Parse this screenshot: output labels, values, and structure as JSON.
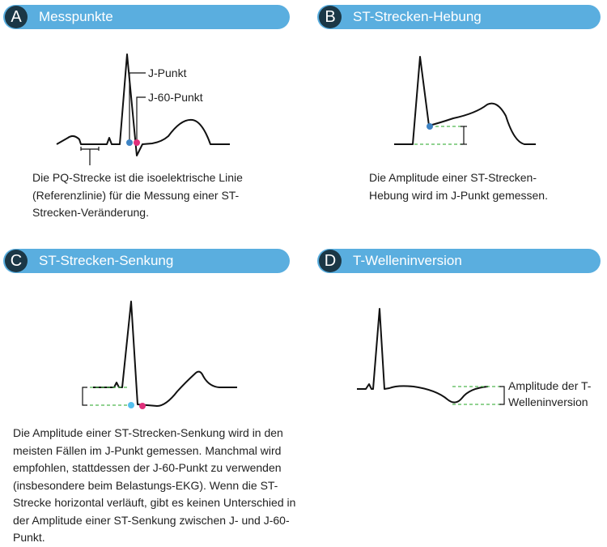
{
  "panels": {
    "a": {
      "letter": "A",
      "title": "Messpunkte",
      "label_j": "J-Punkt",
      "label_j60": "J-60-Punkt",
      "caption": "Die PQ-Strecke ist die isoelektrische Linie (Referenzlinie) für die Messung einer ST-Strecken-Veränderung."
    },
    "b": {
      "letter": "B",
      "title": "ST-Strecken-Hebung",
      "caption": "Die Amplitude einer ST-Strecken-Hebung wird im J-Punkt gemessen."
    },
    "c": {
      "letter": "C",
      "title": "ST-Strecken-Senkung",
      "caption": "Die Amplitude einer ST-Strecken-Senkung wird in den meisten Fällen im J-Punkt gemessen. Manchmal wird empfohlen, stattdessen der J-60-Punkt zu verwenden (insbesondere beim Belastungs-EKG). Wenn die ST-Strecke horizontal verläuft, gibt es keinen Unterschied in der Amplitude einer ST-Senkung zwischen J- und J-60-Punkt."
    },
    "d": {
      "letter": "D",
      "title": "T-Welleninversion",
      "label_amplitude": "Amplitude der T-Welleninversion"
    }
  },
  "colors": {
    "header": "#5aaedf",
    "badge": "#1b3746",
    "j_point": "#3d83c4",
    "j60_point": "#e0307b",
    "c_j_point": "#55c0ee",
    "dashed": "#4fb84f"
  }
}
